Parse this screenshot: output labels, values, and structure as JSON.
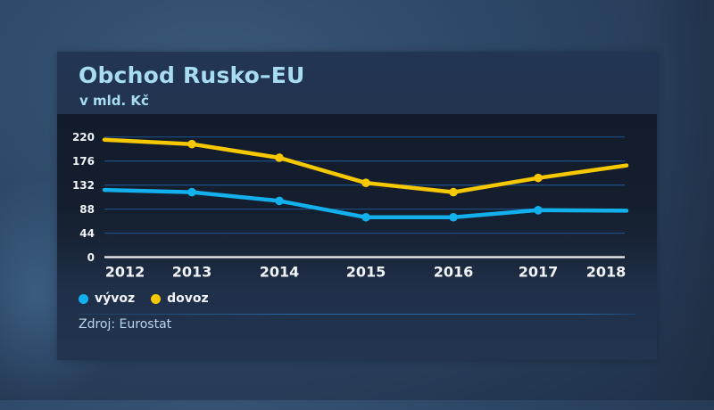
{
  "header": {
    "title": "Obchod Rusko–EU",
    "subtitle": "v mld. Kč"
  },
  "legend": [
    {
      "label": "vývoz",
      "color": "#12b0ec"
    },
    {
      "label": "dovoz",
      "color": "#f5c800"
    }
  ],
  "footer": {
    "source": "Zdroj: Eurostat"
  },
  "colors": {
    "vyvoz": "#12b0ec",
    "dovoz": "#f5c800",
    "gridline": "#1d4f86",
    "axis": "#f2f2f2",
    "title": "#a8dcf2"
  },
  "chart_data": {
    "type": "line",
    "title": "Obchod Rusko–EU",
    "subtitle": "v mld. Kč",
    "xlabel": "",
    "ylabel": "mld. Kč",
    "x": [
      "2012",
      "2013",
      "2014",
      "2015",
      "2016",
      "2017",
      "2018"
    ],
    "series": [
      {
        "name": "vývoz",
        "color": "#12b0ec",
        "values": [
          123,
          119,
          103,
          73,
          73,
          86,
          85
        ]
      },
      {
        "name": "dovoz",
        "color": "#f5c800",
        "values": [
          215,
          207,
          182,
          136,
          119,
          145,
          168
        ]
      }
    ],
    "yticks": [
      0,
      44,
      88,
      132,
      176,
      220
    ],
    "ylim": [
      0,
      220
    ],
    "grid": true,
    "legend_position": "bottom-left",
    "source": "Zdroj: Eurostat"
  }
}
